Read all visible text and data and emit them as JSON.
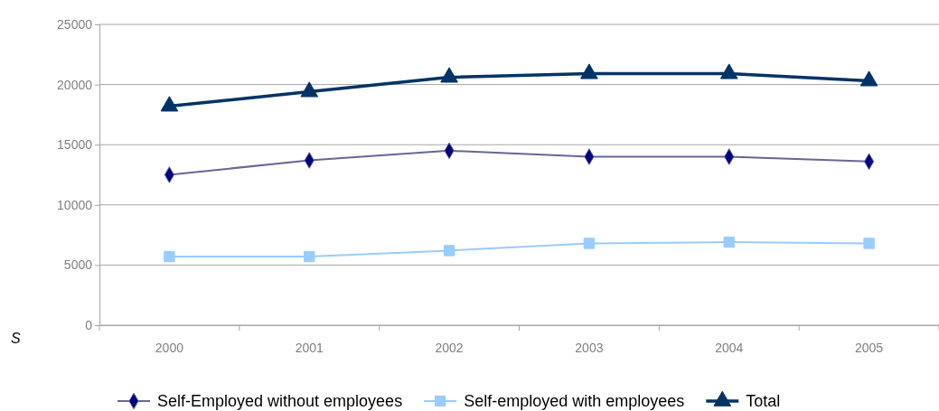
{
  "chart_data": {
    "type": "line",
    "categories": [
      "2000",
      "2001",
      "2002",
      "2003",
      "2004",
      "2005"
    ],
    "series": [
      {
        "name": "Self-Employed without employees",
        "color": "#666699",
        "marker": "diamond",
        "values": [
          12500,
          13700,
          14500,
          14000,
          14000,
          13600
        ]
      },
      {
        "name": "Self-employed with employees",
        "color": "#99ccff",
        "marker": "square",
        "values": [
          5700,
          5700,
          6200,
          6800,
          6900,
          6800
        ]
      },
      {
        "name": "Total",
        "color": "#003366",
        "marker": "triangle",
        "values": [
          18200,
          19400,
          20600,
          20900,
          20900,
          20300
        ]
      }
    ],
    "ylim": [
      0,
      25000
    ],
    "yticks": [
      0,
      5000,
      10000,
      15000,
      20000,
      25000
    ],
    "grid": "y",
    "legend": "bottom",
    "annotations": [
      "S"
    ]
  }
}
